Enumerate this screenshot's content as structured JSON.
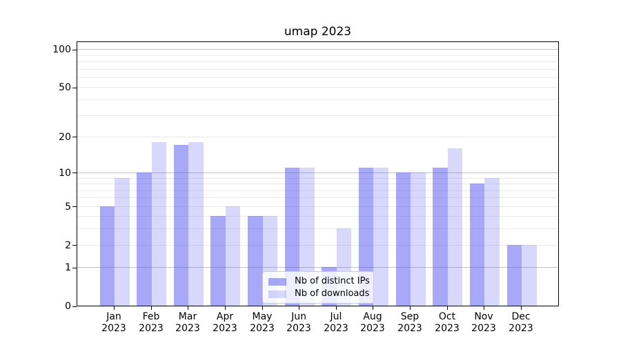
{
  "title": "umap 2023",
  "chart_data": {
    "type": "bar",
    "title": "umap 2023",
    "categories": [
      "Jan 2023",
      "Feb 2023",
      "Mar 2023",
      "Apr 2023",
      "May 2023",
      "Jun 2023",
      "Jul 2023",
      "Aug 2023",
      "Sep 2023",
      "Oct 2023",
      "Nov 2023",
      "Dec 2023"
    ],
    "series": [
      {
        "name": "Nb of distinct IPs",
        "color": "rgba(62,62,242,0.45)",
        "values": [
          5,
          10,
          17,
          4,
          4,
          11,
          1,
          11,
          10,
          11,
          8,
          2
        ]
      },
      {
        "name": "Nb of downloads",
        "color": "rgba(62,62,242,0.20)",
        "values": [
          9,
          18,
          18,
          5,
          4,
          11,
          3,
          11,
          10,
          16,
          9,
          2
        ]
      }
    ],
    "xlabel": "",
    "ylabel": "",
    "yscale": "log1p",
    "yticks": [
      0,
      1,
      2,
      5,
      10,
      20,
      50,
      100
    ],
    "minor_yticks": [
      2,
      3,
      4,
      5,
      6,
      7,
      8,
      9,
      20,
      30,
      40,
      50,
      60,
      70,
      80,
      90
    ],
    "major_gridlines": [
      1,
      10,
      100
    ],
    "ylim": [
      0,
      114
    ],
    "grid": true,
    "legend_position": "lower center",
    "colors": {
      "major_grid": "#c3c3c3",
      "minor_grid": "#eaeaea",
      "axis": "#000000",
      "background": "#ffffff"
    }
  }
}
